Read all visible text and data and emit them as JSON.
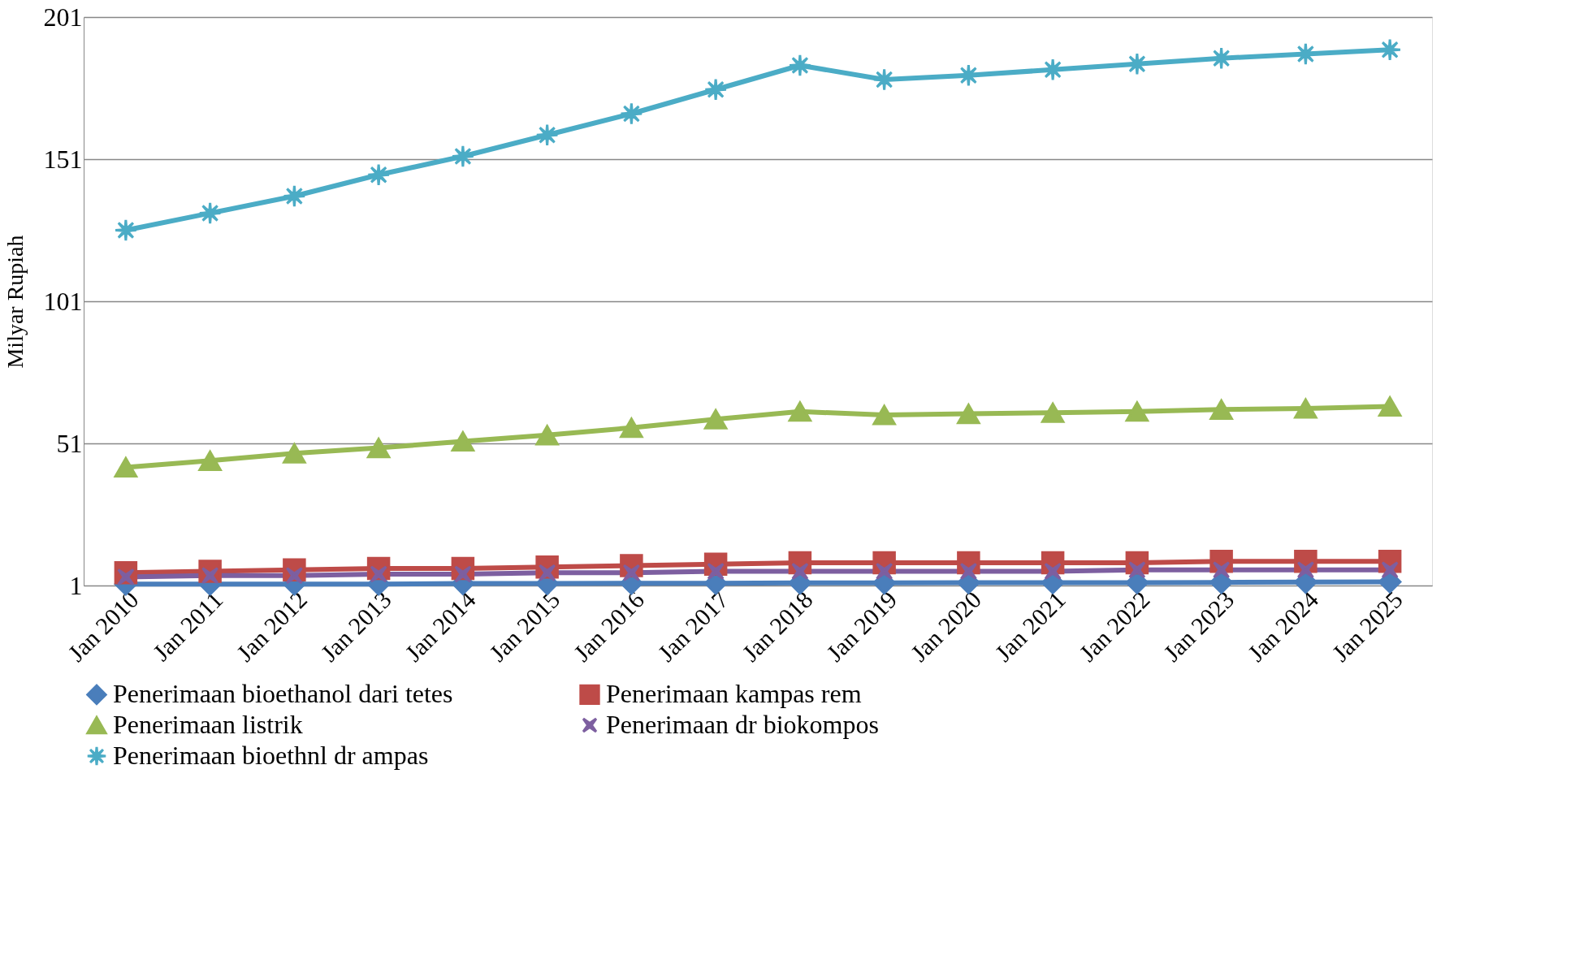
{
  "chart_data": {
    "type": "line",
    "ylabel": "Milyar Rupiah",
    "categories": [
      "Jan 2010",
      "Jan 2011",
      "Jan 2012",
      "Jan 2013",
      "Jan 2014",
      "Jan 2015",
      "Jan 2016",
      "Jan 2017",
      "Jan 2018",
      "Jan 2019",
      "Jan 2020",
      "Jan 2021",
      "Jan 2022",
      "Jan 2023",
      "Jan 2024",
      "Jan 2025"
    ],
    "series": [
      {
        "name": "Penerimaan bioethanol dari tetes",
        "color": "#4a7ebb",
        "marker": "diamond",
        "values": [
          1.5,
          1.5,
          1.5,
          1.5,
          1.7,
          1.7,
          1.8,
          1.8,
          1.9,
          1.9,
          2,
          2,
          2,
          2.1,
          2.2,
          2.3
        ]
      },
      {
        "name": "Penerimaan kampas rem",
        "color": "#be4b48",
        "marker": "square",
        "values": [
          5.5,
          6,
          6.5,
          7,
          7,
          7.5,
          8,
          8.5,
          9,
          9,
          9,
          9,
          9,
          9.5,
          9.5,
          9.5
        ]
      },
      {
        "name": "Penerimaan listrik",
        "color": "#98b954",
        "marker": "triangle",
        "values": [
          42.6,
          44.9,
          47.5,
          49.4,
          51.7,
          53.9,
          56.5,
          59.5,
          62.2,
          61,
          61.4,
          61.8,
          62.2,
          62.9,
          63.3,
          64
        ]
      },
      {
        "name": "Penerimaan dr biokompos",
        "color": "#7d5fa0",
        "marker": "cross",
        "values": [
          4,
          4.5,
          4.5,
          5,
          5,
          5.5,
          5.5,
          6,
          6,
          6,
          6,
          6,
          6.5,
          6.5,
          6.5,
          6.5
        ]
      },
      {
        "name": "Penerimaan bioethnl dr ampas",
        "color": "#4bacc6",
        "marker": "star",
        "values": [
          126,
          132,
          138,
          145.5,
          152,
          159.5,
          167,
          175.5,
          184,
          179,
          180.5,
          182.5,
          184.5,
          186.5,
          188,
          189.5
        ]
      }
    ],
    "ylim": [
      1,
      201
    ],
    "yticks": [
      1,
      51,
      101,
      151,
      201
    ],
    "grid": "y",
    "legend": "bottom",
    "line_style": "solid"
  }
}
